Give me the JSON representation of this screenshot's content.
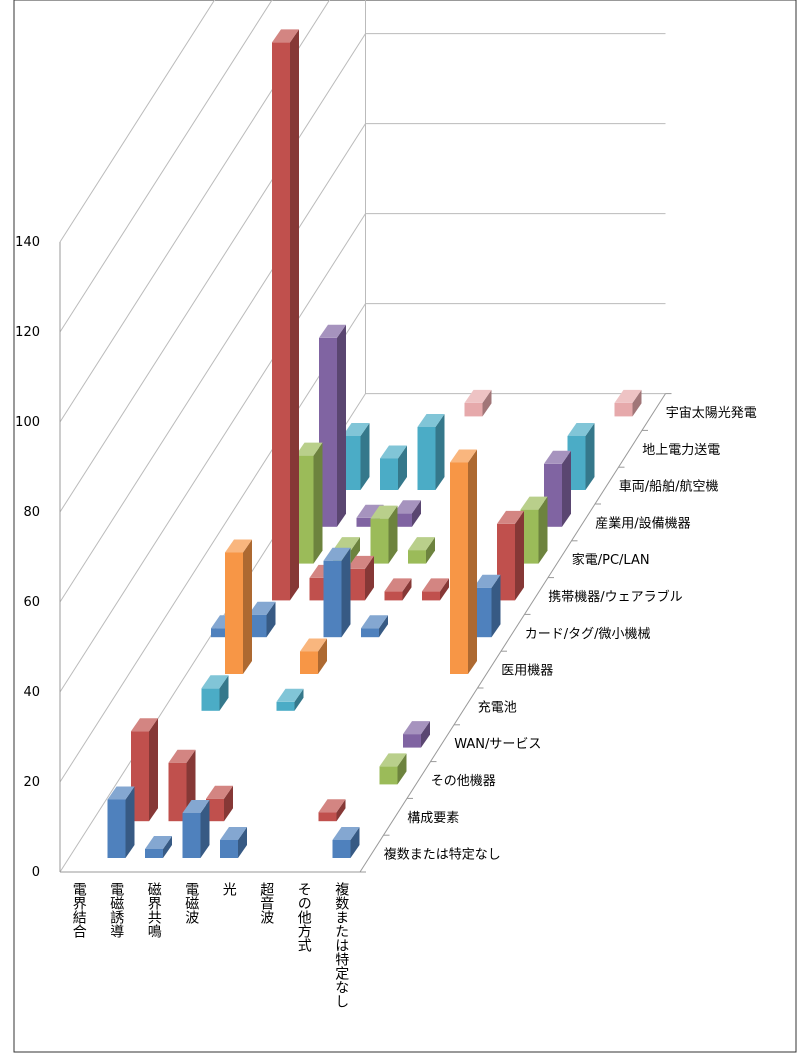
{
  "chart_data": {
    "type": "bar3d",
    "categories": [
      "電界結合",
      "電磁誘導",
      "磁界共鳴",
      "電磁波",
      "光",
      "超音波",
      "その他方式",
      "複数または特定なし"
    ],
    "series": [
      {
        "name": "複数または特定なし",
        "color": "#4f81bd",
        "values": [
          null,
          13,
          2,
          10,
          4,
          null,
          null,
          4
        ]
      },
      {
        "name": "構成要素",
        "color": "#c0504d",
        "values": [
          null,
          20,
          13,
          5,
          null,
          null,
          2,
          null
        ]
      },
      {
        "name": "その他機器",
        "color": "#9bbb59",
        "values": [
          null,
          null,
          null,
          null,
          null,
          null,
          null,
          4
        ]
      },
      {
        "name": "WAN/サービス",
        "color": "#8064a2",
        "values": [
          null,
          null,
          null,
          null,
          null,
          null,
          null,
          3
        ]
      },
      {
        "name": "充電池",
        "color": "#4bacc6",
        "values": [
          null,
          5,
          null,
          2,
          null,
          null,
          null,
          null
        ]
      },
      {
        "name": "医用機器",
        "color": "#f79646",
        "values": [
          null,
          27,
          null,
          5,
          null,
          null,
          null,
          47
        ]
      },
      {
        "name": "カード/タグ/微小機械",
        "color": "#4f81bd",
        "values": [
          2,
          5,
          null,
          17,
          2,
          null,
          null,
          11
        ]
      },
      {
        "name": "携帯機器/ウェアラブル",
        "color": "#c0504d",
        "values": [
          null,
          124,
          5,
          7,
          2,
          2,
          null,
          17
        ]
      },
      {
        "name": "家電/PC/LAN",
        "color": "#9bbb59",
        "values": [
          null,
          24,
          3,
          10,
          3,
          null,
          null,
          12
        ]
      },
      {
        "name": "産業用/設備機器",
        "color": "#8064a2",
        "values": [
          null,
          42,
          2,
          3,
          null,
          null,
          null,
          14
        ]
      },
      {
        "name": "車両/船舶/航空機",
        "color": "#4bacc6",
        "values": [
          null,
          12,
          7,
          14,
          null,
          null,
          null,
          12
        ]
      },
      {
        "name": "地上電力送電",
        "values": [
          null,
          null,
          null,
          null,
          null,
          null,
          null,
          null
        ]
      },
      {
        "name": "宇宙太陽光発電",
        "color": "#e6a9ab",
        "values": [
          null,
          null,
          null,
          3,
          null,
          null,
          null,
          3
        ]
      }
    ],
    "ylim": [
      0,
      140
    ],
    "yticks": [
      0,
      20,
      40,
      60,
      80,
      100,
      120,
      140
    ],
    "grid": true
  }
}
